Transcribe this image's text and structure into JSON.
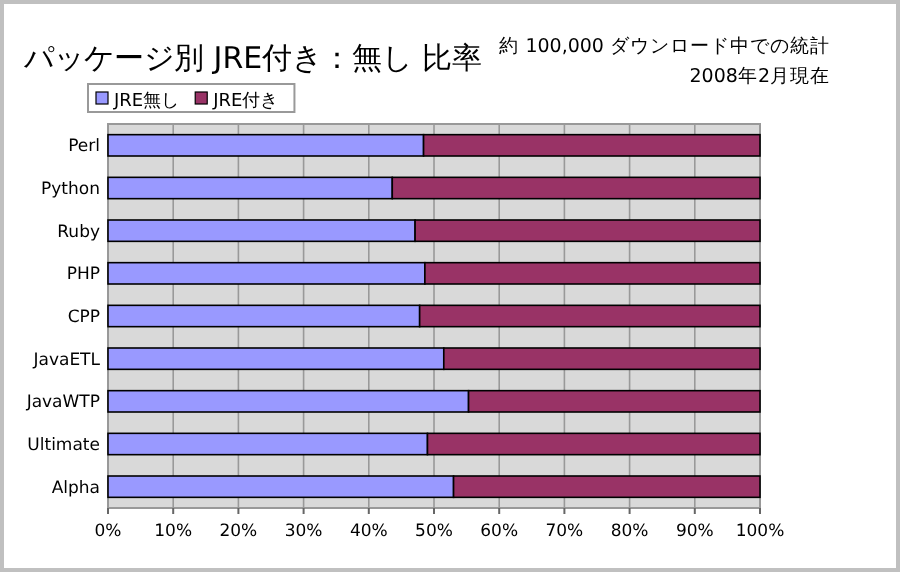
{
  "chart_data": {
    "type": "bar",
    "orientation": "horizontal",
    "stacked": true,
    "title": "パッケージ別 JRE付き：無し 比率",
    "annotations": [
      "約 100,000 ダウンロード中での統計",
      "2008年2月現在"
    ],
    "categories": [
      "Perl",
      "Python",
      "Ruby",
      "PHP",
      "CPP",
      "JavaETL",
      "JavaWTP",
      "Ultimate",
      "Alpha"
    ],
    "series": [
      {
        "name": "JRE無し",
        "color": "#9999ff",
        "values": [
          48.4,
          43.6,
          47.1,
          48.6,
          47.8,
          51.5,
          55.3,
          49.0,
          53.0
        ]
      },
      {
        "name": "JRE付き",
        "color": "#993366",
        "values": [
          51.6,
          56.4,
          52.9,
          51.4,
          52.2,
          48.5,
          44.7,
          51.0,
          47.0
        ]
      }
    ],
    "xlim": [
      0,
      100
    ],
    "xticks": [
      {
        "value": 0,
        "label": "0%"
      },
      {
        "value": 10,
        "label": "10%"
      },
      {
        "value": 20,
        "label": "20%"
      },
      {
        "value": 30,
        "label": "30%"
      },
      {
        "value": 40,
        "label": "40%"
      },
      {
        "value": 50,
        "label": "50%"
      },
      {
        "value": 60,
        "label": "60%"
      },
      {
        "value": 70,
        "label": "70%"
      },
      {
        "value": 80,
        "label": "80%"
      },
      {
        "value": 90,
        "label": "90%"
      },
      {
        "value": 100,
        "label": "100%"
      }
    ],
    "grid": "x",
    "legend": "top left"
  }
}
